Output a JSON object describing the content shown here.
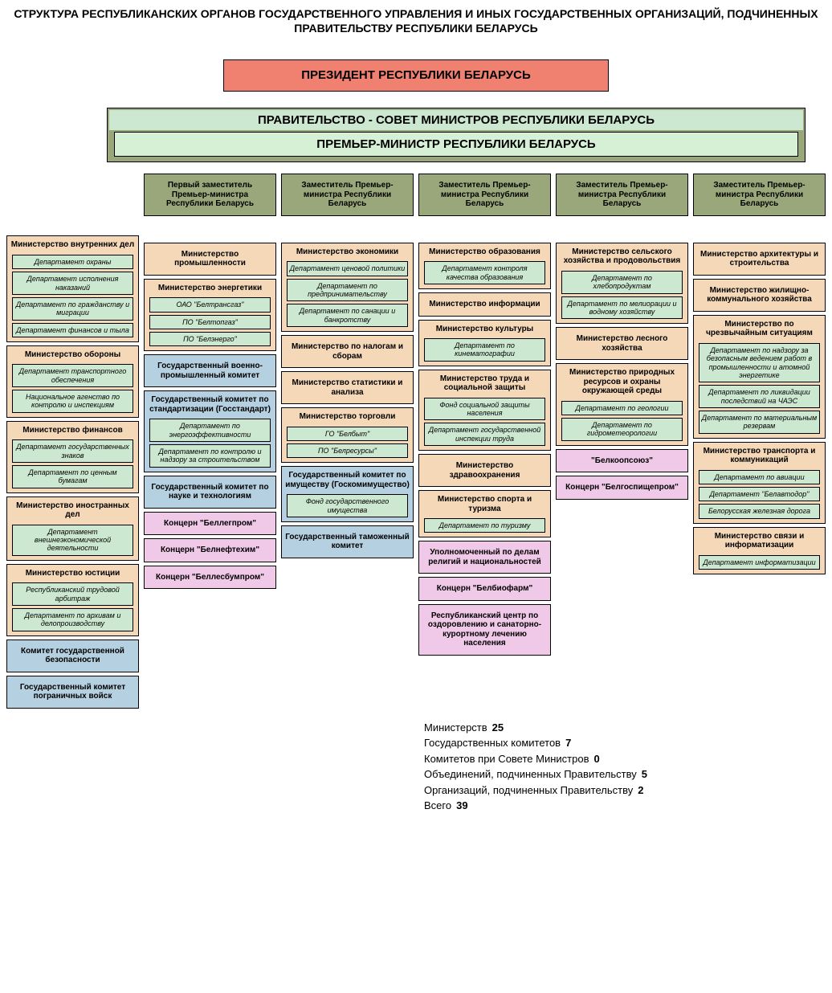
{
  "title": "СТРУКТУРА РЕСПУБЛИКАНСКИХ ОРГАНОВ ГОСУДАРСТВЕННОГО УПРАВЛЕНИЯ И ИНЫХ ГОСУДАРСТВЕННЫХ ОРГАНИЗАЦИЙ, ПОДЧИНЕННЫХ ПРАВИТЕЛЬСТВУ РЕСПУБЛИКИ БЕЛАРУСЬ",
  "colors": {
    "president_bg": "#f08070",
    "gov_outer_bg": "#9aa77a",
    "gov_header_bg": "#cde8d0",
    "pm_bg": "#d6f0d6",
    "deputy_bg": "#9aa77a",
    "ministry_bg": "#f5d8b8",
    "dept_bg": "#cde8d0",
    "committee_bg": "#b5d0e0",
    "org_bg": "#f0c8e8",
    "text": "#000000",
    "border": "#000000"
  },
  "president": "ПРЕЗИДЕНТ РЕСПУБЛИКИ БЕЛАРУСЬ",
  "government_header": "ПРАВИТЕЛЬСТВО - СОВЕТ МИНИСТРОВ РЕСПУБЛИКИ БЕЛАРУСЬ",
  "prime_minister": "ПРЕМЬЕР-МИНИСТР РЕСПУБЛИКИ БЕЛАРУСЬ",
  "deputies": {
    "col1": "",
    "col2": "Первый заместитель Премьер-министра Республики Беларусь",
    "col3": "Заместитель Премьер-министра Республики Беларусь",
    "col4": "Заместитель Премьер-министра Республики Беларусь",
    "col5": "Заместитель Премьер-министра Республики Беларусь",
    "col6": "Заместитель Премьер-министра Республики Беларусь"
  },
  "col1": [
    {
      "type": "ministry",
      "title": "Министерство внутренних дел",
      "depts": [
        "Департамент охраны",
        "Департамент исполнения наказаний",
        "Департамент по гражданству и миграции",
        "Департамент финансов и тыла"
      ]
    },
    {
      "type": "ministry",
      "title": "Министерство обороны",
      "depts": [
        "Департамент транспортного обеспечения",
        "Национальное агенство по контролю и инспекциям"
      ]
    },
    {
      "type": "ministry",
      "title": "Министерство финансов",
      "depts": [
        "Департамент государственных знаков",
        "Департамент по ценным бумагам"
      ]
    },
    {
      "type": "ministry",
      "title": "Министерство иностранных дел",
      "depts": [
        "Департамент внешнеэкономической деятельности"
      ]
    },
    {
      "type": "ministry",
      "title": "Министерство юстиции",
      "depts": [
        "Республиканский трудовой арбитраж",
        "Департамент по архивам и делопроизводству"
      ]
    },
    {
      "type": "committee",
      "title": "Комитет государственной безопасности"
    },
    {
      "type": "committee",
      "title": "Государственный комитет пограничных войск"
    }
  ],
  "col2": [
    {
      "type": "ministry",
      "title": "Министерство промышленности",
      "depts": []
    },
    {
      "type": "ministry",
      "title": "Министерство энергетики",
      "depts": [
        "ОАО \"Белтрансгаз\"",
        "ПО \"Белтопгаз\"",
        "ПО \"Белэнерго\""
      ]
    },
    {
      "type": "committee",
      "title": "Государственный военно-промышленный комитет"
    },
    {
      "type": "committee_w_depts",
      "title": "Государственный комитет по стандартизации (Госстандарт)",
      "depts": [
        "Департамент по энергоэффективности",
        "Департамент по контролю и надзору за строительством"
      ]
    },
    {
      "type": "committee",
      "title": "Государственный комитет по науке и технологиям"
    },
    {
      "type": "org",
      "title": "Концерн \"Беллегпром\""
    },
    {
      "type": "org",
      "title": "Концерн \"Белнефтехим\""
    },
    {
      "type": "org",
      "title": "Концерн \"Беллесбумпром\""
    }
  ],
  "col3": [
    {
      "type": "ministry",
      "title": "Министерство экономики",
      "depts": [
        "Департамент ценовой политики",
        "Департамент по предпринимательству",
        "Департамент по санации и банкротству"
      ]
    },
    {
      "type": "ministry",
      "title": "Министерство по налогам и сборам",
      "depts": []
    },
    {
      "type": "ministry",
      "title": "Министерство статистики и анализа",
      "depts": []
    },
    {
      "type": "ministry",
      "title": "Министерство торговли",
      "depts": [
        "ГО \"Белбыт\"",
        "ПО \"Белресурсы\""
      ]
    },
    {
      "type": "committee_w_depts",
      "title": "Государственный комитет по имуществу (Госкомимущество)",
      "depts": [
        "Фонд государственного имущества"
      ]
    },
    {
      "type": "committee",
      "title": "Государственный таможенный комитет"
    }
  ],
  "col4": [
    {
      "type": "ministry",
      "title": "Министерство образования",
      "depts": [
        "Департамент контроля качества образования"
      ]
    },
    {
      "type": "ministry",
      "title": "Министерство информации",
      "depts": []
    },
    {
      "type": "ministry",
      "title": "Министерство культуры",
      "depts": [
        "Департамент по кинематографии"
      ]
    },
    {
      "type": "ministry",
      "title": "Министерство  труда и социальной защиты",
      "depts": [
        "Фонд социальной защиты населения",
        "Департамент государственной инспекции труда"
      ]
    },
    {
      "type": "ministry",
      "title": "Министерство здравоохранения",
      "depts": []
    },
    {
      "type": "ministry",
      "title": "Министерство спорта и туризма",
      "depts": [
        "Департамент по туризму"
      ]
    },
    {
      "type": "org",
      "title": "Уполномоченный по делам религий и национальностей"
    },
    {
      "type": "org",
      "title": "Концерн \"Белбиофарм\""
    },
    {
      "type": "org",
      "title": "Республиканский центр по оздоровлению и санаторно-курортному лечению населения"
    }
  ],
  "col5": [
    {
      "type": "ministry",
      "title": "Министерство сельского хозяйства и продовольствия",
      "depts": [
        "Департамент по хлебопродуктам",
        "Департамент по мелиорации и водному хозяйству"
      ]
    },
    {
      "type": "ministry",
      "title": "Министерство лесного хозяйства",
      "depts": []
    },
    {
      "type": "ministry",
      "title": "Министерство природных ресурсов и охраны окружающей среды",
      "depts": [
        "Департамент по геологии",
        "Департамент по гидрометеорологии"
      ]
    },
    {
      "type": "org",
      "title": "\"Белкоопсоюз\""
    },
    {
      "type": "org",
      "title": "Концерн \"Белгоспищепром\""
    }
  ],
  "col6": [
    {
      "type": "ministry",
      "title": "Министерство архитектуры и строительства",
      "depts": []
    },
    {
      "type": "ministry",
      "title": "Министерство жилищно-коммунального хозяйства",
      "depts": []
    },
    {
      "type": "ministry",
      "title": "Министерство по чрезвычайным ситуациям",
      "depts": [
        "Департамент по надзору за безопасным ведением работ в промышленности и атомной энергетике",
        "Департамент по ликвидации последствий на ЧАЭС",
        "Департамент по материальным резервам"
      ]
    },
    {
      "type": "ministry",
      "title": "Министерство транспорта и коммуникаций",
      "depts": [
        "Департамент по авиации",
        "Департамент \"Белавтодор\"",
        "Белорусская железная дорога"
      ]
    },
    {
      "type": "ministry",
      "title": "Министерство  связи и информатизации",
      "depts": [
        "Департамент информатизации"
      ]
    }
  ],
  "stats": [
    {
      "label": "Министерств",
      "value": "25"
    },
    {
      "label": "Государственных комитетов",
      "value": "7"
    },
    {
      "label": "Комитетов при Совете Министров",
      "value": "0"
    },
    {
      "label": "Объединений, подчиненных Правительству",
      "value": "5"
    },
    {
      "label": "Организаций, подчиненных Правительству",
      "value": "2"
    },
    {
      "label": "Всего",
      "value": "39"
    }
  ]
}
